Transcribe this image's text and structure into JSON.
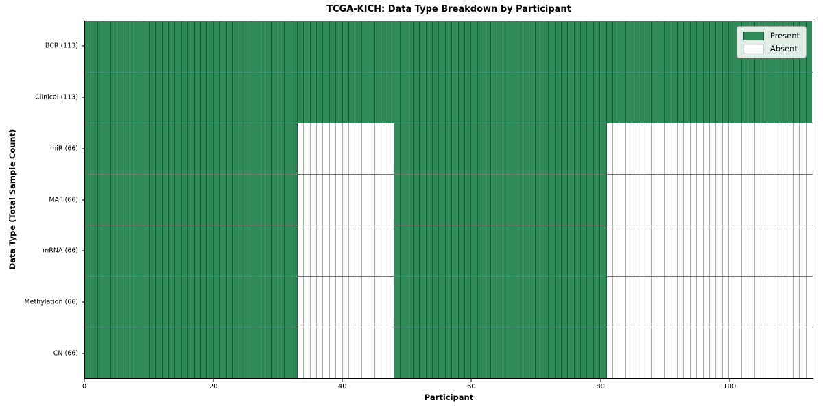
{
  "chart_data": {
    "type": "heatmap",
    "title": "TCGA-KICH: Data Type Breakdown by Participant",
    "xlabel": "Participant",
    "ylabel": "Data Type (Total Sample Count)",
    "n_participants": 113,
    "x_range": [
      0,
      113
    ],
    "x_ticks": [
      0,
      20,
      40,
      60,
      80,
      100
    ],
    "grid": "cell-borders",
    "colors": {
      "present": "#2e8b57",
      "absent": "#ffffff",
      "cell_border": "rgba(0,0,0,0.33)",
      "row_border": "rgba(0,0,0,0.55)",
      "axis": "#000000"
    },
    "legend": {
      "position": "upper-right",
      "entries": [
        {
          "label": "Present",
          "color": "#2e8b57"
        },
        {
          "label": "Absent",
          "color": "#ffffff"
        }
      ]
    },
    "rows": [
      {
        "label": "BCR (113)",
        "total_samples": 113,
        "segments": [
          [
            0,
            113,
            1
          ]
        ]
      },
      {
        "label": "Clinical (113)",
        "total_samples": 113,
        "segments": [
          [
            0,
            113,
            1
          ]
        ]
      },
      {
        "label": "miR (66)",
        "total_samples": 66,
        "segments": [
          [
            0,
            33,
            1
          ],
          [
            33,
            48,
            0
          ],
          [
            48,
            81,
            1
          ],
          [
            81,
            113,
            0
          ]
        ]
      },
      {
        "label": "MAF (66)",
        "total_samples": 66,
        "segments": [
          [
            0,
            33,
            1
          ],
          [
            33,
            48,
            0
          ],
          [
            48,
            81,
            1
          ],
          [
            81,
            113,
            0
          ]
        ]
      },
      {
        "label": "mRNA (66)",
        "total_samples": 66,
        "segments": [
          [
            0,
            33,
            1
          ],
          [
            33,
            48,
            0
          ],
          [
            48,
            81,
            1
          ],
          [
            81,
            113,
            0
          ]
        ]
      },
      {
        "label": "Methylation (66)",
        "total_samples": 66,
        "segments": [
          [
            0,
            33,
            1
          ],
          [
            33,
            48,
            0
          ],
          [
            48,
            81,
            1
          ],
          [
            81,
            113,
            0
          ]
        ]
      },
      {
        "label": "CN (66)",
        "total_samples": 66,
        "segments": [
          [
            0,
            33,
            1
          ],
          [
            33,
            48,
            0
          ],
          [
            48,
            81,
            1
          ],
          [
            81,
            113,
            0
          ]
        ]
      }
    ]
  }
}
